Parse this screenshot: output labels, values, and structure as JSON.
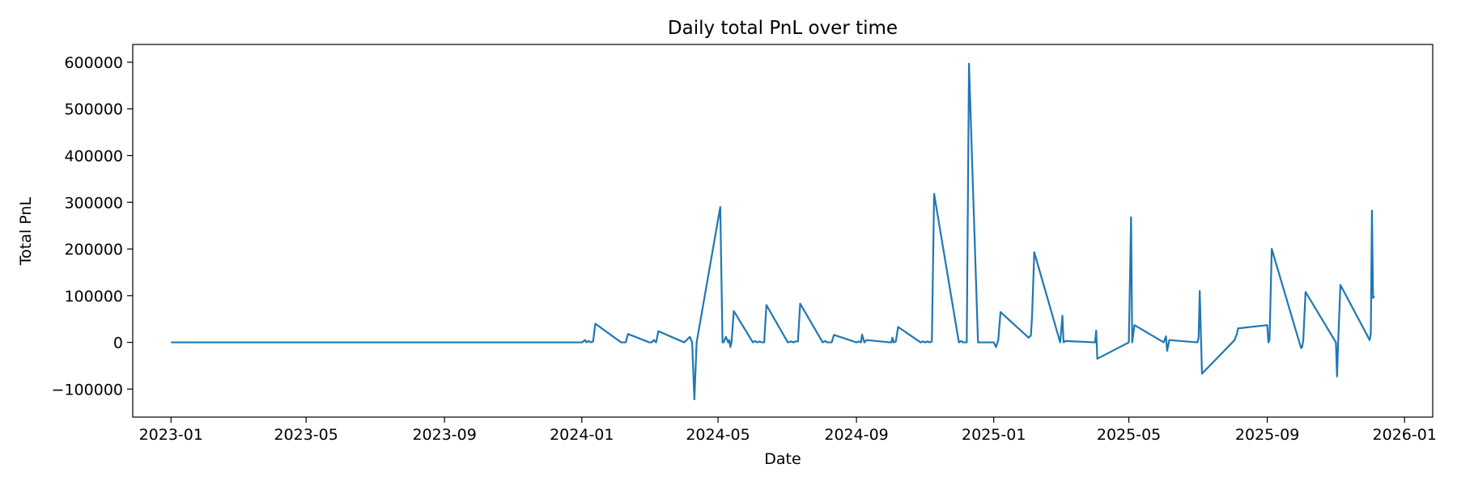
{
  "chart_data": {
    "type": "line",
    "title": "Daily total PnL over time",
    "xlabel": "Date",
    "ylabel": "Total PnL",
    "xlim": [
      "2022-11-28",
      "2026-01-26"
    ],
    "ylim": [
      -160000,
      638000
    ],
    "grid": false,
    "legend": "none",
    "x_ticks": [
      "2023-01",
      "2023-05",
      "2023-09",
      "2024-01",
      "2024-05",
      "2024-09",
      "2025-01",
      "2025-05",
      "2025-09",
      "2026-01"
    ],
    "y_ticks": [
      -100000,
      0,
      100000,
      200000,
      300000,
      400000,
      500000,
      600000
    ],
    "series": [
      {
        "color": "#1f77b4",
        "x": [
          "2023-01-01",
          "2024-01-01",
          "2024-01-04",
          "2024-01-05",
          "2024-01-07",
          "2024-01-09",
          "2024-01-11",
          "2024-01-13",
          "2024-02-05",
          "2024-02-09",
          "2024-02-11",
          "2024-03-01",
          "2024-03-03",
          "2024-03-05",
          "2024-03-07",
          "2024-03-09",
          "2024-04-01",
          "2024-04-06",
          "2024-04-08",
          "2024-04-10",
          "2024-04-12",
          "2024-05-03",
          "2024-05-05",
          "2024-05-06",
          "2024-05-08",
          "2024-05-10",
          "2024-05-11",
          "2024-05-12",
          "2024-05-13",
          "2024-05-15",
          "2024-06-01",
          "2024-06-03",
          "2024-06-05",
          "2024-06-07",
          "2024-06-09",
          "2024-06-11",
          "2024-06-13",
          "2024-07-02",
          "2024-07-05",
          "2024-07-07",
          "2024-07-09",
          "2024-07-11",
          "2024-07-13",
          "2024-08-02",
          "2024-08-04",
          "2024-08-06",
          "2024-08-10",
          "2024-08-12",
          "2024-09-01",
          "2024-09-03",
          "2024-09-05",
          "2024-09-06",
          "2024-09-08",
          "2024-09-10",
          "2024-10-01",
          "2024-10-02",
          "2024-10-03",
          "2024-10-04",
          "2024-10-06",
          "2024-10-08",
          "2024-10-28",
          "2024-10-30",
          "2024-11-01",
          "2024-11-03",
          "2024-11-05",
          "2024-11-07",
          "2024-11-09",
          "2024-12-01",
          "2024-12-03",
          "2024-12-05",
          "2024-12-07",
          "2024-12-08",
          "2024-12-10",
          "2024-12-13",
          "2024-12-18",
          "2025-01-01",
          "2025-01-03",
          "2025-01-05",
          "2025-01-07",
          "2025-02-01",
          "2025-02-03",
          "2025-02-04",
          "2025-02-06",
          "2025-03-01",
          "2025-03-03",
          "2025-03-04",
          "2025-03-06",
          "2025-04-01",
          "2025-04-02",
          "2025-04-03",
          "2025-05-01",
          "2025-05-03",
          "2025-05-04",
          "2025-05-06",
          "2025-06-01",
          "2025-06-03",
          "2025-06-04",
          "2025-06-06",
          "2025-07-01",
          "2025-07-02",
          "2025-07-03",
          "2025-07-05",
          "2025-08-01",
          "2025-08-03",
          "2025-08-05",
          "2025-08-06",
          "2025-09-01",
          "2025-09-02",
          "2025-09-03",
          "2025-09-05",
          "2025-10-01",
          "2025-10-02",
          "2025-10-03",
          "2025-10-05",
          "2025-11-01",
          "2025-11-02",
          "2025-11-03",
          "2025-11-05",
          "2025-12-01",
          "2025-12-02",
          "2025-12-03",
          "2025-12-04",
          "2025-12-05"
        ],
        "y": [
          0,
          0,
          5000,
          0,
          3000,
          0,
          2000,
          40000,
          0,
          0,
          18000,
          0,
          0,
          5000,
          0,
          24000,
          0,
          12000,
          0,
          -122000,
          0,
          290000,
          0,
          0,
          12000,
          0,
          5000,
          -10000,
          0,
          67000,
          0,
          3000,
          0,
          2000,
          0,
          0,
          80000,
          0,
          2000,
          0,
          2000,
          2000,
          83000,
          0,
          3000,
          0,
          0,
          16000,
          0,
          2000,
          0,
          17000,
          0,
          5000,
          0,
          0,
          10000,
          0,
          2000,
          33000,
          0,
          2000,
          0,
          2000,
          0,
          2000,
          318000,
          0,
          3000,
          0,
          0,
          0,
          597000,
          370000,
          0,
          0,
          -10000,
          5000,
          65000,
          10000,
          15000,
          55000,
          193000,
          0,
          57000,
          0,
          3000,
          0,
          25000,
          -35000,
          0,
          268000,
          0,
          37000,
          0,
          13000,
          -18000,
          5000,
          0,
          10000,
          110000,
          -67000,
          0,
          5000,
          18000,
          30000,
          37000,
          0,
          5000,
          200000,
          -12000,
          -10000,
          5000,
          108000,
          0,
          -73000,
          2000,
          123000,
          5000,
          20000,
          282000,
          95000,
          100000
        ]
      }
    ]
  }
}
